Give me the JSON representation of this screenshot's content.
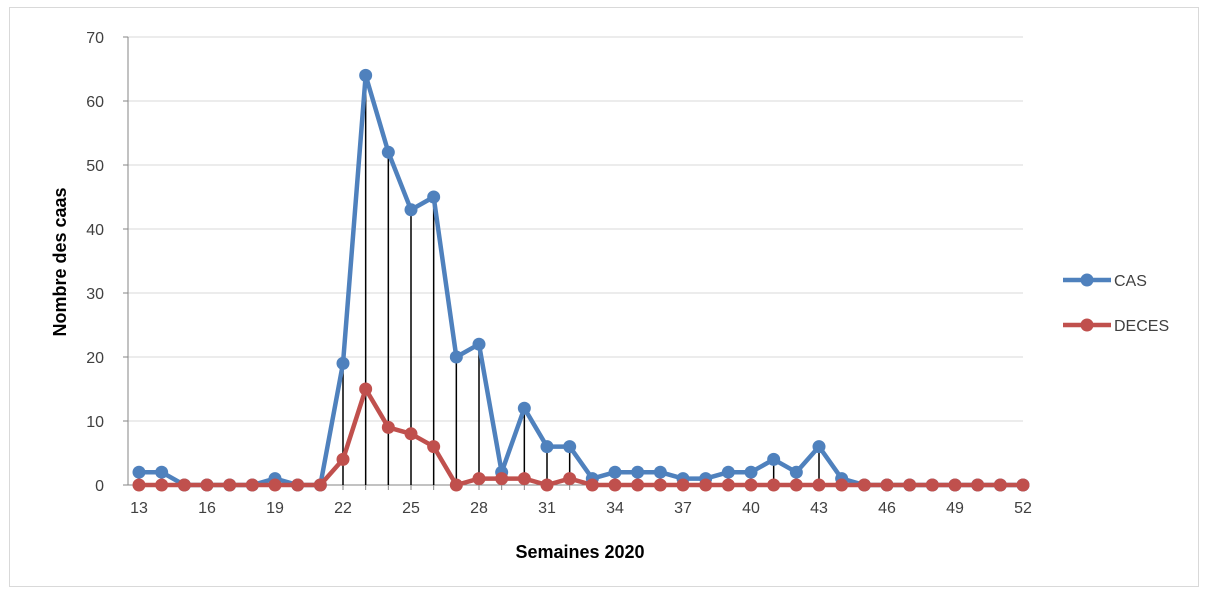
{
  "chart_data": {
    "type": "line",
    "title": "",
    "xlabel": "Semaines 2020",
    "ylabel": "Nombre des caas",
    "ylim": [
      0,
      70
    ],
    "y_ticks": [
      "0",
      "10",
      "20",
      "30",
      "40",
      "50",
      "60",
      "70"
    ],
    "x": [
      13,
      14,
      15,
      16,
      17,
      18,
      19,
      20,
      21,
      22,
      23,
      24,
      25,
      26,
      27,
      28,
      29,
      30,
      31,
      32,
      33,
      34,
      35,
      36,
      37,
      38,
      39,
      40,
      41,
      42,
      43,
      44,
      45,
      46,
      47,
      48,
      49,
      50,
      51,
      52
    ],
    "x_tick_labels": [
      "13",
      "16",
      "19",
      "22",
      "25",
      "28",
      "31",
      "34",
      "37",
      "40",
      "43",
      "46",
      "49",
      "52"
    ],
    "drop_lines": true,
    "grid": "horizontal",
    "legend_position": "right",
    "series": [
      {
        "name": "CAS",
        "color": "#4f81bd",
        "values": [
          2,
          2,
          0,
          0,
          0,
          0,
          1,
          0,
          0,
          19,
          64,
          52,
          43,
          45,
          20,
          22,
          2,
          12,
          6,
          6,
          1,
          2,
          2,
          2,
          1,
          1,
          2,
          2,
          4,
          2,
          6,
          1,
          0,
          0,
          0,
          0,
          0,
          0,
          0,
          0
        ]
      },
      {
        "name": "DECES",
        "color": "#c0504d",
        "values": [
          0,
          0,
          0,
          0,
          0,
          0,
          0,
          0,
          0,
          4,
          15,
          9,
          8,
          6,
          0,
          1,
          1,
          1,
          0,
          1,
          0,
          0,
          0,
          0,
          0,
          0,
          0,
          0,
          0,
          0,
          0,
          0,
          0,
          0,
          0,
          0,
          0,
          0,
          0,
          0
        ]
      }
    ]
  }
}
